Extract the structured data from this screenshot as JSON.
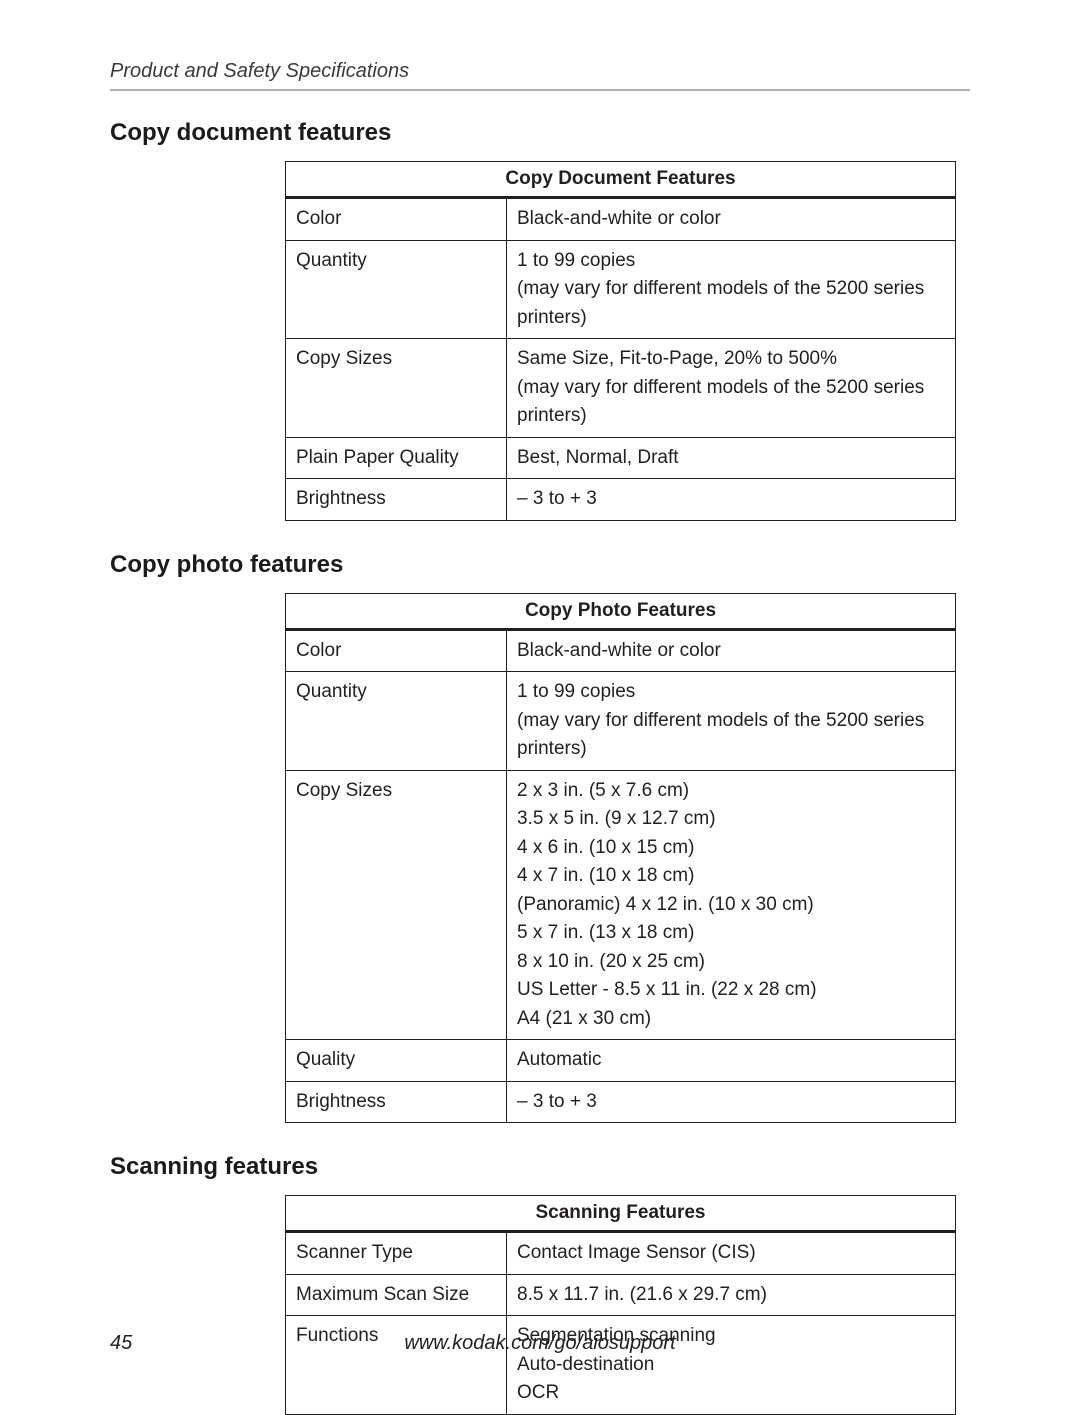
{
  "header": {
    "running_title": "Product and Safety Specifications"
  },
  "sections": {
    "copy_document": {
      "heading": "Copy document features",
      "table_title": "Copy Document Features",
      "rows": {
        "r0": {
          "label": "Color",
          "value": "Black-and-white or color"
        },
        "r1": {
          "label": "Quantity",
          "value": "1 to 99 copies\n(may vary for different models of the 5200 series printers)"
        },
        "r2": {
          "label": "Copy Sizes",
          "value": "Same Size, Fit-to-Page, 20% to 500%\n(may vary for different models of the 5200 series printers)"
        },
        "r3": {
          "label": "Plain Paper Quality",
          "value": "Best, Normal, Draft"
        },
        "r4": {
          "label": "Brightness",
          "value": "– 3 to + 3"
        }
      }
    },
    "copy_photo": {
      "heading": "Copy photo features",
      "table_title": "Copy Photo Features",
      "rows": {
        "r0": {
          "label": "Color",
          "value": "Black-and-white or color"
        },
        "r1": {
          "label": "Quantity",
          "value": "1 to 99 copies\n(may vary for different models of the 5200 series printers)"
        },
        "r2": {
          "label": "Copy Sizes",
          "value": "2 x 3 in. (5 x 7.6 cm)\n3.5 x 5 in. (9 x 12.7 cm)\n4 x 6 in. (10 x 15 cm)\n4 x 7 in. (10 x 18 cm)\n(Panoramic) 4 x 12 in. (10 x 30 cm)\n5 x 7 in. (13 x 18 cm)\n8 x 10 in. (20 x 25 cm)\nUS Letter - 8.5 x 11 in. (22 x 28 cm)\nA4 (21 x 30 cm)"
        },
        "r3": {
          "label": "Quality",
          "value": "Automatic"
        },
        "r4": {
          "label": "Brightness",
          "value": "–  3 to + 3"
        }
      }
    },
    "scanning": {
      "heading": "Scanning features",
      "table_title": "Scanning Features",
      "rows": {
        "r0": {
          "label": "Scanner Type",
          "value": "Contact Image Sensor (CIS)"
        },
        "r1": {
          "label": "Maximum Scan Size",
          "value": "8.5 x 11.7 in. (21.6 x 29.7 cm)"
        },
        "r2": {
          "label": "Functions",
          "value": "Segmentation scanning\nAuto-destination\nOCR"
        }
      }
    }
  },
  "footer": {
    "page_number": "45",
    "url": "www.kodak.com/go/aiosupport"
  }
}
